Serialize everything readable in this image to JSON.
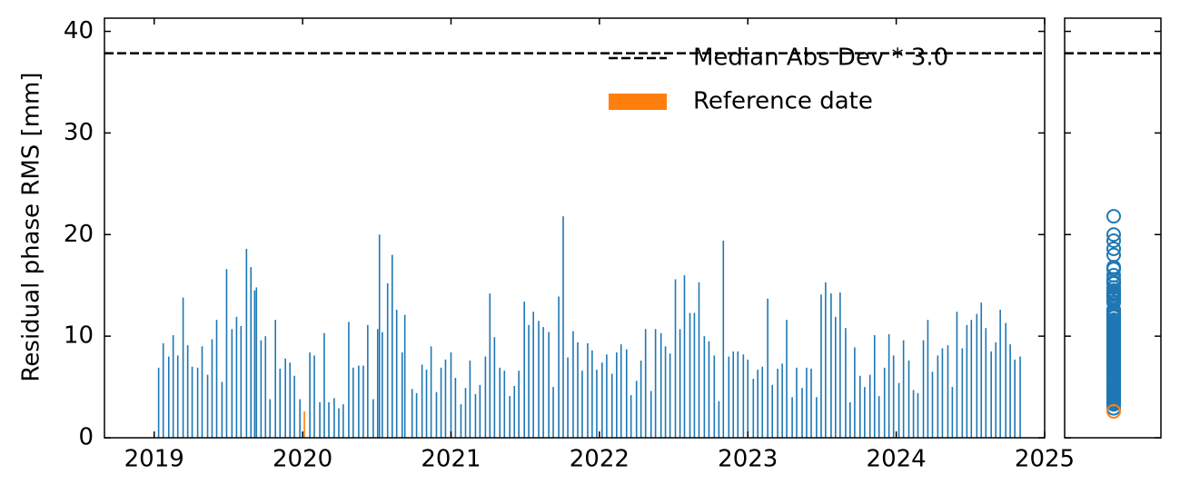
{
  "chart_data": {
    "type": "bar",
    "ylabel": "Residual phase RMS [mm]",
    "xlim": [
      2018.665,
      2025
    ],
    "xticks": [
      2019,
      2020,
      2021,
      2022,
      2023,
      2024,
      2025
    ],
    "ylim": [
      0,
      41.3
    ],
    "yticks": [
      0,
      10,
      20,
      30,
      40
    ],
    "legend": "upper right",
    "hlines": [
      {
        "label": "Median Abs Dev * 3.0",
        "value": 37.85,
        "color": "#000000"
      }
    ],
    "series": [
      {
        "color": "#1f77b4",
        "x": [
          2019.03,
          2019.061,
          2019.098,
          2019.128,
          2019.159,
          2019.195,
          2019.226,
          2019.256,
          2019.293,
          2019.323,
          2019.36,
          2019.39,
          2019.421,
          2019.457,
          2019.488,
          2019.524,
          2019.555,
          2019.585,
          2019.622,
          2019.652,
          2019.677,
          2019.689,
          2019.72,
          2019.75,
          2019.78,
          2019.817,
          2019.848,
          2019.884,
          2019.915,
          2019.945,
          2019.982,
          2020.049,
          2020.079,
          2020.116,
          2020.146,
          2020.177,
          2020.213,
          2020.244,
          2020.274,
          2020.311,
          2020.341,
          2020.378,
          2020.409,
          2020.439,
          2020.476,
          2020.506,
          2020.518,
          2020.537,
          2020.573,
          2020.604,
          2020.634,
          2020.671,
          2020.689,
          2020.738,
          2020.768,
          2020.805,
          2020.835,
          2020.866,
          2020.902,
          2020.933,
          2020.963,
          2021.0,
          2021.03,
          2021.067,
          2021.098,
          2021.128,
          2021.165,
          2021.195,
          2021.232,
          2021.262,
          2021.293,
          2021.329,
          2021.36,
          2021.396,
          2021.427,
          2021.457,
          2021.494,
          2021.524,
          2021.555,
          2021.591,
          2021.622,
          2021.659,
          2021.689,
          2021.726,
          2021.756,
          2021.787,
          2021.823,
          2021.854,
          2021.884,
          2021.921,
          2021.951,
          2021.982,
          2022.018,
          2022.049,
          2022.085,
          2022.116,
          2022.146,
          2022.183,
          2022.213,
          2022.25,
          2022.28,
          2022.311,
          2022.348,
          2022.378,
          2022.415,
          2022.445,
          2022.476,
          2022.512,
          2022.543,
          2022.573,
          2022.61,
          2022.64,
          2022.671,
          2022.707,
          2022.738,
          2022.774,
          2022.805,
          2022.835,
          2022.872,
          2022.902,
          2022.933,
          2022.97,
          2023.0,
          2023.037,
          2023.067,
          2023.098,
          2023.134,
          2023.165,
          2023.201,
          2023.232,
          2023.262,
          2023.299,
          2023.329,
          2023.366,
          2023.396,
          2023.427,
          2023.463,
          2023.494,
          2023.524,
          2023.561,
          2023.591,
          2023.622,
          2023.659,
          2023.689,
          2023.72,
          2023.756,
          2023.787,
          2023.823,
          2023.854,
          2023.884,
          2023.921,
          2023.951,
          2023.982,
          2024.018,
          2024.049,
          2024.085,
          2024.116,
          2024.146,
          2024.183,
          2024.213,
          2024.244,
          2024.28,
          2024.311,
          2024.348,
          2024.378,
          2024.409,
          2024.445,
          2024.476,
          2024.506,
          2024.543,
          2024.573,
          2024.604,
          2024.64,
          2024.671,
          2024.701,
          2024.738,
          2024.768,
          2024.799,
          2024.835
        ],
        "values": [
          6.9,
          9.3,
          8.0,
          10.1,
          8.1,
          13.8,
          9.1,
          7.0,
          6.9,
          9.0,
          6.2,
          9.7,
          11.6,
          5.5,
          16.6,
          10.7,
          11.9,
          11.0,
          18.6,
          16.8,
          14.5,
          14.8,
          9.6,
          10.0,
          3.8,
          11.6,
          6.8,
          7.8,
          7.4,
          6.1,
          3.8,
          8.4,
          8.1,
          3.5,
          10.3,
          3.5,
          3.9,
          2.9,
          3.3,
          11.4,
          6.9,
          7.1,
          7.1,
          11.1,
          3.8,
          10.7,
          20.0,
          10.4,
          15.2,
          18.0,
          12.6,
          8.4,
          12.1,
          4.8,
          4.4,
          7.2,
          6.7,
          9.0,
          4.5,
          6.9,
          7.7,
          8.4,
          5.9,
          3.3,
          4.9,
          7.6,
          4.3,
          5.2,
          8.0,
          14.2,
          9.9,
          6.9,
          6.6,
          4.1,
          5.1,
          6.6,
          13.4,
          11.1,
          12.4,
          11.5,
          10.9,
          10.4,
          5.0,
          13.9,
          21.8,
          7.9,
          10.5,
          9.4,
          6.6,
          9.3,
          8.6,
          6.7,
          7.4,
          8.2,
          6.3,
          8.4,
          9.2,
          8.7,
          4.2,
          5.6,
          7.6,
          10.7,
          4.6,
          10.7,
          10.3,
          9.0,
          8.3,
          15.6,
          10.7,
          16.0,
          12.3,
          12.3,
          15.3,
          10.0,
          9.5,
          8.1,
          3.6,
          19.4,
          8.0,
          8.5,
          8.5,
          8.2,
          7.7,
          5.8,
          6.7,
          7.0,
          13.7,
          5.2,
          6.8,
          7.3,
          11.6,
          4.0,
          6.9,
          4.9,
          6.9,
          6.8,
          4.0,
          14.1,
          15.3,
          14.2,
          11.9,
          14.3,
          10.8,
          3.5,
          8.9,
          6.1,
          5.0,
          6.2,
          10.1,
          4.1,
          6.9,
          10.2,
          8.1,
          5.4,
          9.6,
          7.6,
          4.7,
          4.4,
          9.6,
          11.6,
          6.5,
          8.1,
          8.8,
          9.1,
          5.0,
          12.4,
          8.8,
          11.1,
          11.6,
          12.2,
          13.3,
          10.8,
          8.5,
          9.4,
          12.6,
          11.3,
          9.2,
          7.7,
          8.0
        ]
      },
      {
        "name": "Reference date",
        "color": "#ff7f0e",
        "x": [
          2020.012
        ],
        "values": [
          2.6
        ]
      }
    ]
  }
}
